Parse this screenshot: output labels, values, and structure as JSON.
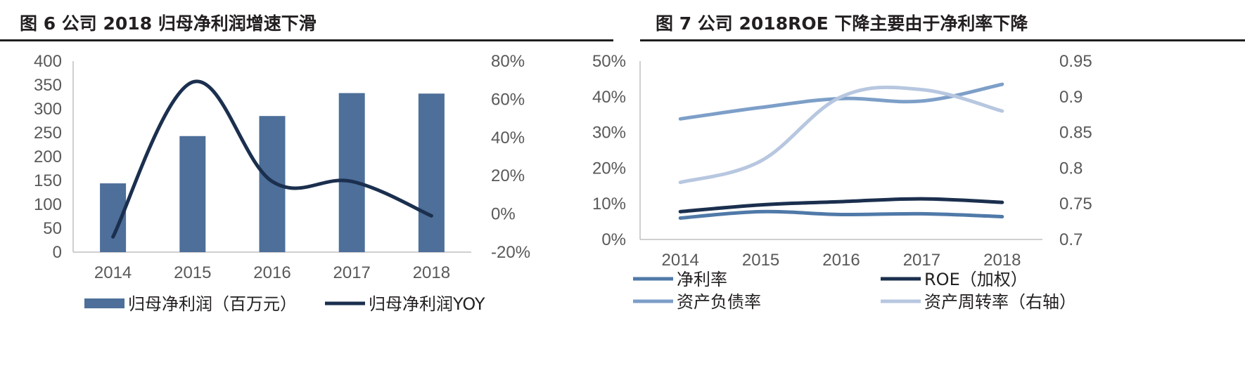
{
  "figures": [
    {
      "title": "图 6 公司 2018 归母净利润增速下滑"
    },
    {
      "title": "图 7 公司 2018ROE 下降主要由于净利率下降"
    }
  ],
  "chart_data": [
    {
      "type": "bar",
      "title": "图 6 公司 2018 归母净利润增速下滑",
      "categories": [
        "2014",
        "2015",
        "2016",
        "2017",
        "2018"
      ],
      "series": [
        {
          "name": "归母净利润（百万元）",
          "type": "bar",
          "axis": "left",
          "values": [
            144,
            243,
            285,
            333,
            332
          ],
          "color": "#4d6f99"
        },
        {
          "name": "归母净利润YOY",
          "type": "line",
          "axis": "right",
          "values": [
            -12,
            69,
            17,
            17,
            -1
          ],
          "color": "#1b2f4e"
        }
      ],
      "left_axis": {
        "min": 0,
        "max": 400,
        "step": 50,
        "ticks": [
          "0",
          "50",
          "100",
          "150",
          "200",
          "250",
          "300",
          "350",
          "400"
        ]
      },
      "right_axis": {
        "min": -20,
        "max": 80,
        "step": 20,
        "ticks": [
          "-20%",
          "0%",
          "20%",
          "40%",
          "60%",
          "80%"
        ]
      },
      "grid": false,
      "legend_position": "bottom"
    },
    {
      "type": "line",
      "title": "图 7 公司 2018ROE 下降主要由于净利率下降",
      "categories": [
        "2014",
        "2015",
        "2016",
        "2017",
        "2018"
      ],
      "series": [
        {
          "name": "净利率",
          "axis": "left",
          "values": [
            6.0,
            7.8,
            7.0,
            7.2,
            6.4
          ],
          "color": "#4f79a8"
        },
        {
          "name": "ROE（加权）",
          "axis": "left",
          "values": [
            7.8,
            9.7,
            10.6,
            11.4,
            10.4
          ],
          "color": "#1b2f4e"
        },
        {
          "name": "资产负债率",
          "axis": "left",
          "values": [
            33.8,
            37.0,
            39.5,
            38.8,
            43.5
          ],
          "color": "#7d9fc8"
        },
        {
          "name": "资产周转率（右轴）",
          "axis": "right",
          "values": [
            0.78,
            0.81,
            0.9,
            0.91,
            0.88
          ],
          "color": "#b7c7e0"
        }
      ],
      "left_axis": {
        "min": 0,
        "max": 50,
        "step": 10,
        "ticks": [
          "0%",
          "10%",
          "20%",
          "30%",
          "40%",
          "50%"
        ]
      },
      "right_axis": {
        "min": 0.7,
        "max": 0.95,
        "step": 0.05,
        "ticks": [
          "0.7",
          "0.75",
          "0.8",
          "0.85",
          "0.9",
          "0.95"
        ]
      },
      "grid": false,
      "legend_position": "bottom"
    }
  ]
}
